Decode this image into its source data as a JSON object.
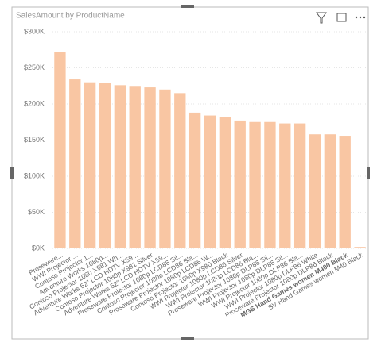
{
  "chart_data": {
    "type": "bar",
    "title": "SalesAmount by ProductName",
    "categories": [
      "Proseware...",
      "WWI Projector ...",
      "Contoso Projector 1...",
      "Adventure Works 1080p...",
      "Contoso Projector 1080 X981 Wh...",
      "Adventure Works 52\" LCD HDTV X59...",
      "Contoso Projector 1080p X981 Silver",
      "Adventure Works 52\" LCD HDTV X59...",
      "Proseware Projector 1080p LCD86 Sil...",
      "Contoso Projector 1080p LCD86 Bla...",
      "Proseware Projector 1080p LCD86 W...",
      "Contoso Projector 1080p X980 Black",
      "WWI Projector 1080p LCD86 Silver",
      "WWI Projector 1080p LCD86 Bla...",
      "Proseware Projector 1080p DLP86 Sil...",
      "WWI Projector 1080p DLP86 Sil...",
      "WWI Projector 1080p DLP86 Bla...",
      "WWI Projector 1080p DLP86 White",
      "Proseware Projector 1080p DLP86 Black",
      "MGS Hand Games women M400 Black",
      "SV Hand Games women M40 Black"
    ],
    "values": [
      272000,
      234000,
      230000,
      229000,
      226000,
      225000,
      223000,
      220000,
      215000,
      188000,
      184000,
      182000,
      177000,
      175000,
      175000,
      173000,
      173000,
      158000,
      158000,
      156000,
      2000
    ],
    "color": "#f9c6a3",
    "ylim": [
      0,
      300000
    ],
    "yticks": [
      {
        "value": 0,
        "label": "$0K"
      },
      {
        "value": 50000,
        "label": "$50K"
      },
      {
        "value": 100000,
        "label": "$100K"
      },
      {
        "value": 150000,
        "label": "$150K"
      },
      {
        "value": 200000,
        "label": "$200K"
      },
      {
        "value": 250000,
        "label": "$250K"
      },
      {
        "value": 300000,
        "label": "$300K"
      }
    ],
    "grid": true
  }
}
